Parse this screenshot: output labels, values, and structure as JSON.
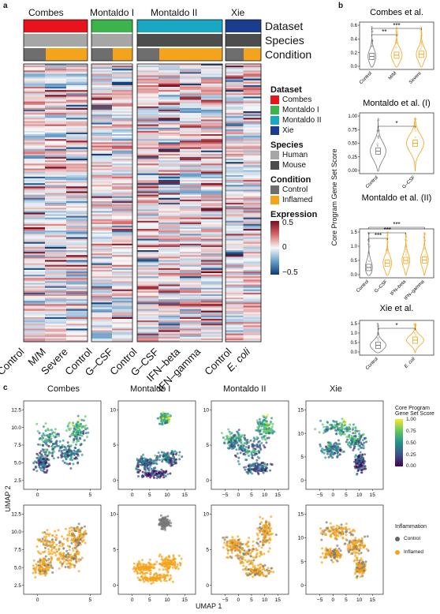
{
  "panel_a": {
    "label": "a",
    "dataset_names": [
      "Combes",
      "Montaldo I",
      "Montaldo II",
      "Xie"
    ],
    "bar_labels": [
      "Dataset",
      "Species",
      "Condition"
    ],
    "x_labels": [
      "Control",
      "M/M",
      "Severe",
      "Control",
      "G–CSF",
      "Control",
      "G–CSF",
      "IFN–beta",
      "IFN–gamma",
      "Control",
      "E. coli"
    ],
    "legend": {
      "dataset_title": "Dataset",
      "dataset_items": [
        {
          "label": "Combes",
          "color": "#e8141c"
        },
        {
          "label": "Montaldo I",
          "color": "#3cb44b"
        },
        {
          "label": "Montaldo II",
          "color": "#1aa7c4"
        },
        {
          "label": "Xie",
          "color": "#1a3d8f"
        }
      ],
      "species_title": "Species",
      "species_items": [
        {
          "label": "Human",
          "color": "#a6a6a6"
        },
        {
          "label": "Mouse",
          "color": "#4d4d4d"
        }
      ],
      "condition_title": "Condition",
      "condition_items": [
        {
          "label": "Control",
          "color": "#6e6e6e"
        },
        {
          "label": "Inflamed",
          "color": "#f5a31a"
        }
      ],
      "expression_title": "Expression",
      "expression_ticks": [
        "0.5",
        "0",
        "−0.5"
      ]
    }
  },
  "panel_b": {
    "label": "b",
    "y_axis_label": "Core Program Gene Set Score",
    "plots": [
      {
        "title": "Combes et al.",
        "y_ticks": [
          "0.6",
          "0.4",
          "0.2",
          "0.0"
        ],
        "groups": [
          "Control",
          "M/M",
          "Severe"
        ],
        "sig": [
          "**",
          "***"
        ]
      },
      {
        "title": "Montaldo et al. (I)",
        "y_ticks": [
          "1.00",
          "0.75",
          "0.50",
          "0.25",
          "0.00"
        ],
        "groups": [
          "Control",
          "G–CSF"
        ],
        "sig": [
          "*"
        ]
      },
      {
        "title": "Montaldo et al. (II)",
        "y_ticks": [
          "1.5",
          "1.0",
          "0.5",
          "0.0"
        ],
        "groups": [
          "Control",
          "G–CSF",
          "IFN–beta",
          "IFN–gamma"
        ],
        "sig": [
          "***",
          "***",
          "***"
        ]
      },
      {
        "title": "Xie et al.",
        "y_ticks": [
          "1.5",
          "1.0",
          "0.5",
          "0.0"
        ],
        "groups": [
          "Control",
          "E. coli"
        ],
        "sig": [
          "*"
        ]
      }
    ],
    "colors": {
      "control": "#777777",
      "inflamed": "#f5a31a"
    }
  },
  "panel_c": {
    "label": "c",
    "titles": [
      "Combes",
      "Montaldo I",
      "Montaldo II",
      "Xie"
    ],
    "x_axis_label": "UMAP 1",
    "y_axis_label": "UMAP 2",
    "x_ticks": [
      [
        "0",
        "5"
      ],
      [
        "0",
        "5",
        "10",
        "15"
      ],
      [
        "−5",
        "0",
        "5",
        "10",
        "15"
      ],
      [
        "−5",
        "0",
        "5",
        "10",
        "15"
      ]
    ],
    "y_ticks": [
      [
        "12.5",
        "10.0",
        "7.5",
        "5.0",
        "2.5"
      ],
      [
        "10",
        "5",
        "0"
      ],
      [
        "10",
        "5",
        "0"
      ],
      [
        "15",
        "10",
        "5",
        "0"
      ]
    ],
    "score_legend": {
      "title_line1": "Core Program",
      "title_line2": "Gene Set Score",
      "ticks": [
        "1.00",
        "0.75",
        "0.50",
        "0.25",
        "0.00"
      ]
    },
    "inflammation_legend": {
      "title": "Inflammation",
      "items": [
        {
          "label": "Control",
          "color": "#666666"
        },
        {
          "label": "Inflamed",
          "color": "#f5a31a"
        }
      ]
    }
  }
}
